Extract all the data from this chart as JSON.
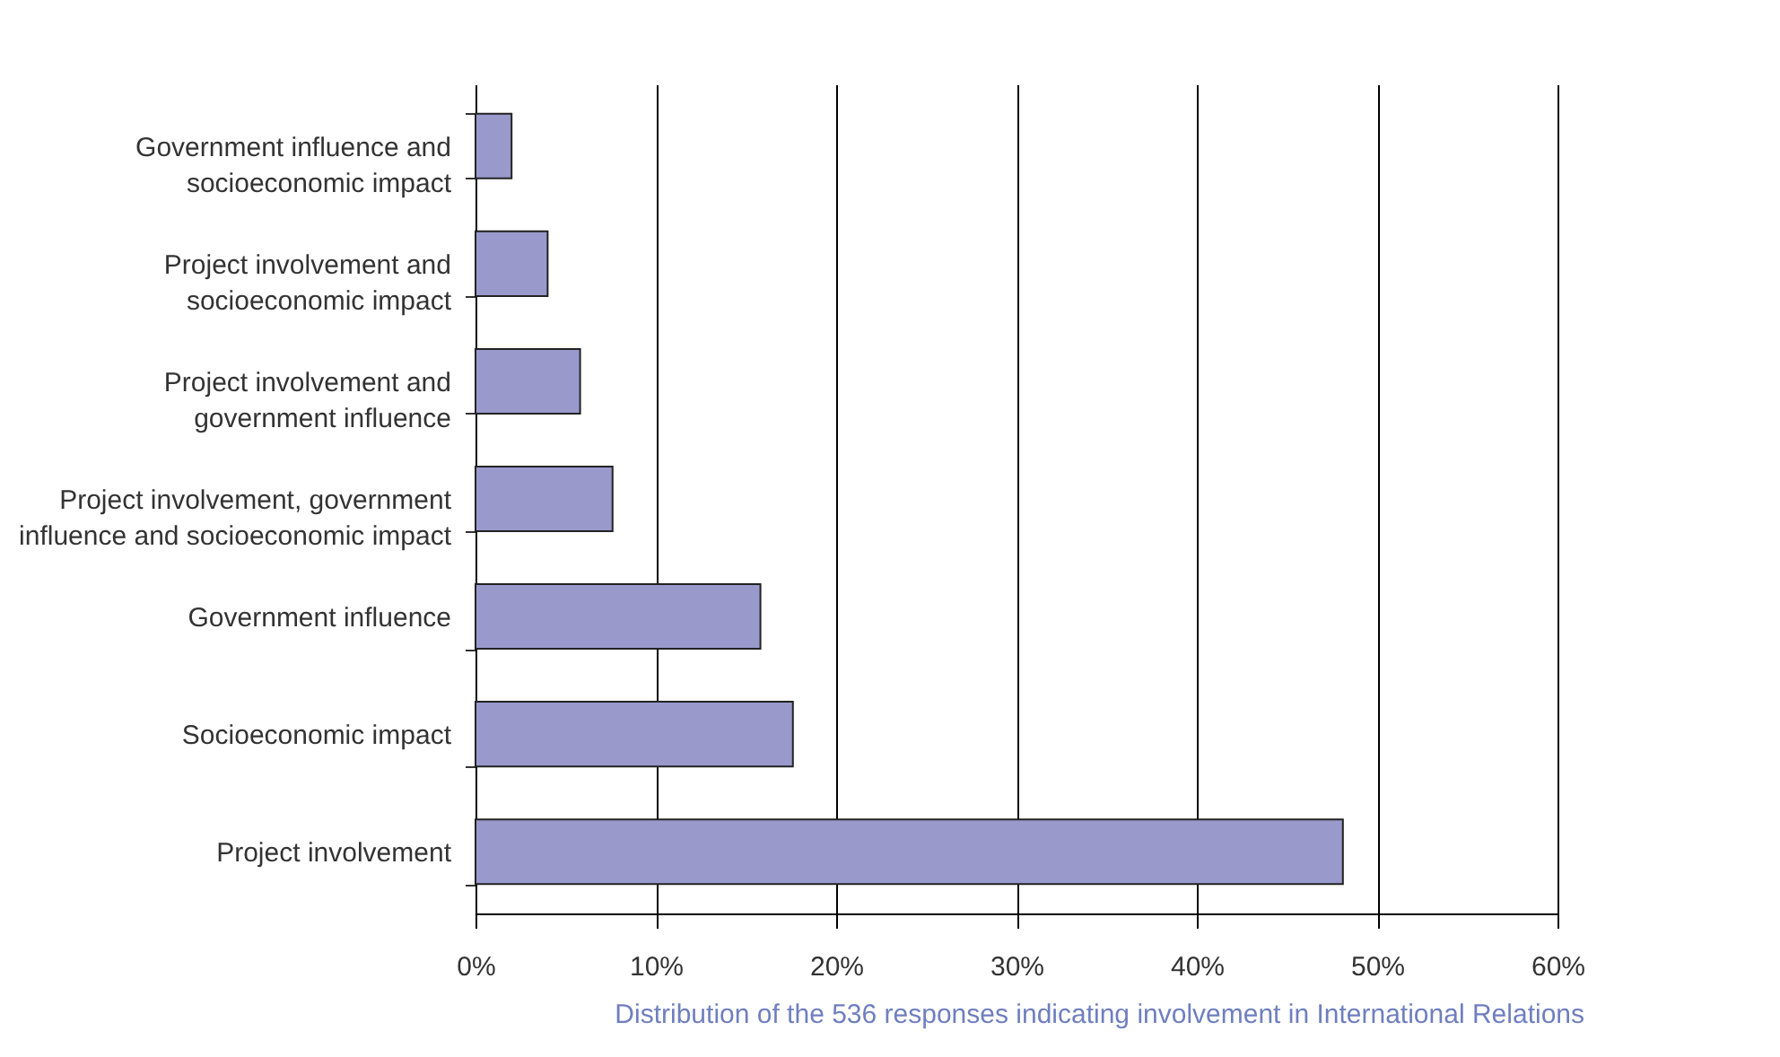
{
  "chart_data": {
    "type": "bar",
    "orientation": "horizontal",
    "categories": [
      "Government influence and socioeconomic impact",
      "Project involvement and socioeconomic impact",
      "Project involvement and government influence",
      "Project involvement, government influence and socioeconomic impact",
      "Government influence",
      "Socioeconomic impact",
      "Project involvement"
    ],
    "values": [
      2.0,
      4.0,
      5.8,
      7.6,
      15.8,
      17.6,
      48.1
    ],
    "color": "#9999cc",
    "xlim": [
      0,
      60
    ],
    "xticks": [
      {
        "value": 0,
        "label": "0%"
      },
      {
        "value": 10,
        "label": "10%"
      },
      {
        "value": 20,
        "label": "20%"
      },
      {
        "value": 30,
        "label": "30%"
      },
      {
        "value": 40,
        "label": "40%"
      },
      {
        "value": 50,
        "label": "50%"
      },
      {
        "value": 60,
        "label": "60%"
      }
    ],
    "grid": "x",
    "annotations": [
      "Distribution of the 536 responses indicating involvement in International Relations"
    ]
  }
}
